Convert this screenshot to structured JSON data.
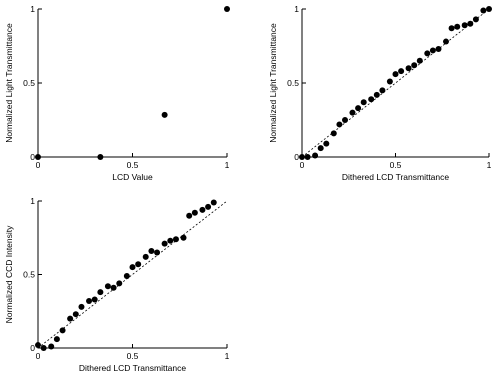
{
  "chart_data": [
    {
      "type": "scatter",
      "title": "",
      "xlabel": "LCD Value",
      "ylabel": "Normalized Light Transmittance",
      "xlim": [
        0,
        1
      ],
      "ylim": [
        0,
        1
      ],
      "xticks": [
        "0",
        "0.5",
        "1"
      ],
      "yticks": [
        "0",
        "0.5",
        "1"
      ],
      "grid": false,
      "reference_line": false,
      "series": [
        {
          "x": [
            0,
            0.33,
            0.67,
            1.0
          ],
          "y": [
            0,
            0,
            0.285,
            1.0
          ]
        }
      ]
    },
    {
      "type": "scatter",
      "title": "",
      "xlabel": "Dithered LCD Transmittance",
      "ylabel": "Normalized Light Transmittance",
      "xlim": [
        0,
        1
      ],
      "ylim": [
        0,
        1
      ],
      "xticks": [
        "0",
        "0.5",
        "1"
      ],
      "yticks": [
        "0",
        "0.5",
        "1"
      ],
      "grid": false,
      "reference_line": true,
      "series": [
        {
          "x": [
            0,
            0.03,
            0.07,
            0.1,
            0.13,
            0.17,
            0.2,
            0.23,
            0.27,
            0.3,
            0.33,
            0.37,
            0.4,
            0.43,
            0.47,
            0.5,
            0.53,
            0.57,
            0.6,
            0.63,
            0.67,
            0.7,
            0.73,
            0.77,
            0.8,
            0.83,
            0.87,
            0.9,
            0.93,
            0.97,
            1.0
          ],
          "y": [
            0,
            0,
            0.01,
            0.06,
            0.09,
            0.16,
            0.22,
            0.25,
            0.3,
            0.33,
            0.37,
            0.39,
            0.42,
            0.45,
            0.51,
            0.56,
            0.58,
            0.6,
            0.62,
            0.65,
            0.7,
            0.72,
            0.73,
            0.78,
            0.87,
            0.88,
            0.89,
            0.9,
            0.93,
            0.99,
            1.0
          ]
        }
      ]
    },
    {
      "type": "scatter",
      "title": "",
      "xlabel": "Dithered LCD Transmittance",
      "ylabel": "Normalized CCD Intensity",
      "xlim": [
        0,
        1
      ],
      "ylim": [
        0,
        1
      ],
      "xticks": [
        "0",
        "0.5",
        "1"
      ],
      "yticks": [
        "0",
        "0.5",
        "1"
      ],
      "grid": false,
      "reference_line": true,
      "series": [
        {
          "x": [
            0,
            0.03,
            0.07,
            0.1,
            0.13,
            0.17,
            0.2,
            0.23,
            0.27,
            0.3,
            0.33,
            0.37,
            0.4,
            0.43,
            0.47,
            0.5,
            0.53,
            0.57,
            0.6,
            0.63,
            0.67,
            0.7,
            0.73,
            0.77,
            0.8,
            0.83,
            0.87,
            0.9,
            0.93
          ],
          "y": [
            0.02,
            0,
            0.01,
            0.06,
            0.12,
            0.2,
            0.23,
            0.28,
            0.32,
            0.33,
            0.38,
            0.42,
            0.41,
            0.44,
            0.49,
            0.55,
            0.57,
            0.62,
            0.66,
            0.65,
            0.71,
            0.73,
            0.74,
            0.75,
            0.9,
            0.92,
            0.94,
            0.96,
            0.99
          ]
        }
      ]
    }
  ]
}
